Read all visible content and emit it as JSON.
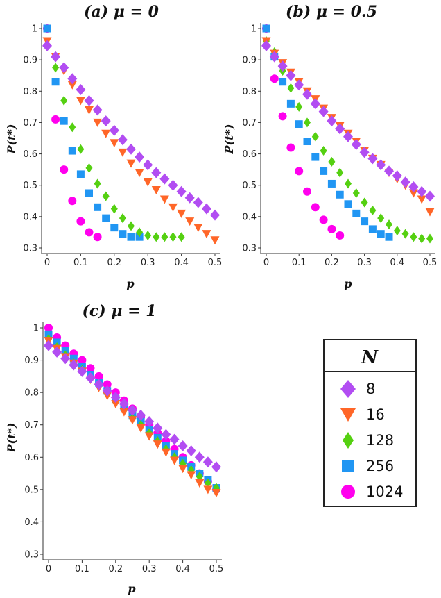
{
  "chart_data": [
    {
      "type": "scatter",
      "title": "(a) μ = 0",
      "xlabel": "p",
      "ylabel": "P(t*)",
      "xlim": [
        0,
        0.5
      ],
      "ylim": [
        0.3,
        1
      ],
      "xticks": [
        "0",
        "0.1",
        "0.2",
        "0.3",
        "0.4",
        "0.5"
      ],
      "yticks": [
        "1",
        "0.9",
        "0.8",
        "0.7",
        "0.6",
        "0.5",
        "0.4",
        "0.3"
      ],
      "series": [
        {
          "name": "8",
          "x": [
            0,
            0.025,
            0.05,
            0.075,
            0.1,
            0.125,
            0.15,
            0.175,
            0.2,
            0.225,
            0.25,
            0.275,
            0.3,
            0.325,
            0.35,
            0.375,
            0.4,
            0.425,
            0.45,
            0.475,
            0.5
          ],
          "y": [
            0.945,
            0.91,
            0.875,
            0.84,
            0.805,
            0.77,
            0.74,
            0.705,
            0.675,
            0.645,
            0.615,
            0.59,
            0.565,
            0.54,
            0.52,
            0.5,
            0.48,
            0.46,
            0.445,
            0.425,
            0.405
          ]
        },
        {
          "name": "16",
          "x": [
            0,
            0.025,
            0.05,
            0.075,
            0.1,
            0.125,
            0.15,
            0.175,
            0.2,
            0.225,
            0.25,
            0.275,
            0.3,
            0.325,
            0.35,
            0.375,
            0.4,
            0.425,
            0.45,
            0.475,
            0.5
          ],
          "y": [
            0.96,
            0.91,
            0.865,
            0.82,
            0.77,
            0.74,
            0.7,
            0.665,
            0.635,
            0.605,
            0.57,
            0.54,
            0.51,
            0.485,
            0.455,
            0.43,
            0.41,
            0.385,
            0.365,
            0.345,
            0.325
          ]
        },
        {
          "name": "128",
          "x": [
            0,
            0.025,
            0.05,
            0.075,
            0.1,
            0.125,
            0.15,
            0.175,
            0.2,
            0.225,
            0.25,
            0.275,
            0.3,
            0.325,
            0.35,
            0.375,
            0.4
          ],
          "y": [
            0.945,
            0.875,
            0.77,
            0.685,
            0.615,
            0.555,
            0.505,
            0.465,
            0.425,
            0.395,
            0.37,
            0.35,
            0.34,
            0.335,
            0.335,
            0.335,
            0.335
          ]
        },
        {
          "name": "256",
          "x": [
            0,
            0.025,
            0.05,
            0.075,
            0.1,
            0.125,
            0.15,
            0.175,
            0.2,
            0.225,
            0.25,
            0.275
          ],
          "y": [
            1,
            0.83,
            0.705,
            0.61,
            0.535,
            0.475,
            0.43,
            0.395,
            0.365,
            0.345,
            0.335,
            0.335
          ]
        },
        {
          "name": "1024",
          "x": [
            0,
            0.025,
            0.05,
            0.075,
            0.1,
            0.125,
            0.15
          ],
          "y": [
            1,
            0.71,
            0.55,
            0.45,
            0.385,
            0.35,
            0.335
          ]
        }
      ]
    },
    {
      "type": "scatter",
      "title": "(b) μ = 0.5",
      "xlabel": "p",
      "ylabel": "P(t*)",
      "xlim": [
        0,
        0.5
      ],
      "ylim": [
        0.3,
        1
      ],
      "xticks": [
        "0",
        "0.1",
        "0.2",
        "0.3",
        "0.4",
        "0.5"
      ],
      "yticks": [
        "1",
        "0.9",
        "0.8",
        "0.7",
        "0.6",
        "0.5",
        "0.4",
        "0.3"
      ],
      "series": [
        {
          "name": "8",
          "x": [
            0,
            0.025,
            0.05,
            0.075,
            0.1,
            0.125,
            0.15,
            0.175,
            0.2,
            0.225,
            0.25,
            0.275,
            0.3,
            0.325,
            0.35,
            0.375,
            0.4,
            0.425,
            0.45,
            0.475,
            0.5
          ],
          "y": [
            0.945,
            0.91,
            0.88,
            0.85,
            0.82,
            0.79,
            0.76,
            0.735,
            0.705,
            0.68,
            0.655,
            0.63,
            0.605,
            0.585,
            0.565,
            0.545,
            0.53,
            0.51,
            0.495,
            0.48,
            0.465
          ]
        },
        {
          "name": "16",
          "x": [
            0,
            0.025,
            0.05,
            0.075,
            0.1,
            0.125,
            0.15,
            0.175,
            0.2,
            0.225,
            0.25,
            0.275,
            0.3,
            0.325,
            0.35,
            0.375,
            0.4,
            0.425,
            0.45,
            0.475,
            0.5
          ],
          "y": [
            0.96,
            0.92,
            0.89,
            0.86,
            0.83,
            0.8,
            0.775,
            0.745,
            0.715,
            0.69,
            0.665,
            0.64,
            0.61,
            0.585,
            0.565,
            0.54,
            0.52,
            0.5,
            0.475,
            0.455,
            0.415
          ]
        },
        {
          "name": "128",
          "x": [
            0,
            0.025,
            0.05,
            0.075,
            0.1,
            0.125,
            0.15,
            0.175,
            0.2,
            0.225,
            0.25,
            0.275,
            0.3,
            0.325,
            0.35,
            0.375,
            0.4,
            0.425,
            0.45,
            0.475,
            0.5
          ],
          "y": [
            0.96,
            0.925,
            0.865,
            0.81,
            0.75,
            0.7,
            0.655,
            0.61,
            0.575,
            0.54,
            0.505,
            0.475,
            0.445,
            0.42,
            0.395,
            0.375,
            0.355,
            0.345,
            0.335,
            0.33,
            0.33
          ]
        },
        {
          "name": "256",
          "x": [
            0,
            0.025,
            0.05,
            0.075,
            0.1,
            0.125,
            0.15,
            0.175,
            0.2,
            0.225,
            0.25,
            0.275,
            0.3,
            0.325,
            0.35,
            0.375
          ],
          "y": [
            1,
            0.91,
            0.83,
            0.76,
            0.695,
            0.64,
            0.59,
            0.545,
            0.505,
            0.47,
            0.44,
            0.41,
            0.385,
            0.36,
            0.345,
            0.335
          ]
        },
        {
          "name": "1024",
          "x": [
            0,
            0.025,
            0.05,
            0.075,
            0.1,
            0.125,
            0.15,
            0.175,
            0.2,
            0.225
          ],
          "y": [
            1,
            0.84,
            0.72,
            0.62,
            0.545,
            0.48,
            0.43,
            0.39,
            0.36,
            0.34
          ]
        }
      ]
    },
    {
      "type": "scatter",
      "title": "(c) μ = 1",
      "xlabel": "p",
      "ylabel": "P(t*)",
      "xlim": [
        0,
        0.5
      ],
      "ylim": [
        0.3,
        1
      ],
      "xticks": [
        "0",
        "0.1",
        "0.2",
        "0.3",
        "0.4",
        "0.5"
      ],
      "yticks": [
        "1",
        "0.9",
        "0.8",
        "0.7",
        "0.6",
        "0.5",
        "0.4",
        "0.3"
      ],
      "series": [
        {
          "name": "8",
          "x": [
            0,
            0.025,
            0.05,
            0.075,
            0.1,
            0.125,
            0.15,
            0.175,
            0.2,
            0.225,
            0.25,
            0.275,
            0.3,
            0.325,
            0.35,
            0.375,
            0.4,
            0.425,
            0.45,
            0.475,
            0.5
          ],
          "y": [
            0.945,
            0.925,
            0.905,
            0.885,
            0.865,
            0.845,
            0.825,
            0.805,
            0.785,
            0.765,
            0.745,
            0.73,
            0.71,
            0.69,
            0.67,
            0.655,
            0.635,
            0.62,
            0.6,
            0.585,
            0.57
          ]
        },
        {
          "name": "16",
          "x": [
            0,
            0.025,
            0.05,
            0.075,
            0.1,
            0.125,
            0.15,
            0.175,
            0.2,
            0.225,
            0.25,
            0.275,
            0.3,
            0.325,
            0.35,
            0.375,
            0.4,
            0.425,
            0.45,
            0.475,
            0.5
          ],
          "y": [
            0.96,
            0.935,
            0.91,
            0.89,
            0.865,
            0.84,
            0.815,
            0.79,
            0.765,
            0.74,
            0.715,
            0.69,
            0.665,
            0.64,
            0.615,
            0.59,
            0.565,
            0.545,
            0.52,
            0.5,
            0.49
          ]
        },
        {
          "name": "128",
          "x": [
            0,
            0.025,
            0.05,
            0.075,
            0.1,
            0.125,
            0.15,
            0.175,
            0.2,
            0.225,
            0.25,
            0.275,
            0.3,
            0.325,
            0.35,
            0.375,
            0.4,
            0.425,
            0.45,
            0.475,
            0.5
          ],
          "y": [
            0.965,
            0.94,
            0.915,
            0.89,
            0.87,
            0.845,
            0.82,
            0.795,
            0.77,
            0.745,
            0.72,
            0.7,
            0.675,
            0.65,
            0.625,
            0.6,
            0.58,
            0.56,
            0.54,
            0.52,
            0.505
          ]
        },
        {
          "name": "256",
          "x": [
            0,
            0.025,
            0.05,
            0.075,
            0.1,
            0.125,
            0.15,
            0.175,
            0.2,
            0.225,
            0.25,
            0.275,
            0.3,
            0.325,
            0.35,
            0.375,
            0.4,
            0.425,
            0.45,
            0.475,
            0.5
          ],
          "y": [
            0.98,
            0.955,
            0.93,
            0.905,
            0.88,
            0.855,
            0.83,
            0.805,
            0.78,
            0.755,
            0.73,
            0.71,
            0.685,
            0.66,
            0.635,
            0.61,
            0.59,
            0.57,
            0.55,
            0.53,
            0.505
          ]
        },
        {
          "name": "1024",
          "x": [
            0,
            0.025,
            0.05,
            0.075,
            0.1,
            0.125,
            0.15,
            0.175,
            0.2,
            0.225,
            0.25,
            0.275,
            0.3,
            0.325,
            0.35,
            0.375,
            0.4,
            0.425,
            0.45,
            0.475,
            0.5
          ],
          "y": [
            1,
            0.97,
            0.945,
            0.92,
            0.9,
            0.875,
            0.85,
            0.825,
            0.8,
            0.775,
            0.75,
            0.725,
            0.7,
            0.675,
            0.65,
            0.625,
            0.6,
            0.575,
            0.55,
            0.525,
            0.5
          ]
        }
      ]
    }
  ],
  "legend": {
    "title": "N",
    "entries": [
      {
        "label": "8",
        "marker": "diamond",
        "color": "#b24df2"
      },
      {
        "label": "16",
        "marker": "triangle-down",
        "color": "#ff6628"
      },
      {
        "label": "128",
        "marker": "diamond-small",
        "color": "#55d011"
      },
      {
        "label": "256",
        "marker": "square",
        "color": "#2196f3"
      },
      {
        "label": "1024",
        "marker": "circle",
        "color": "#ff00ee"
      }
    ]
  }
}
